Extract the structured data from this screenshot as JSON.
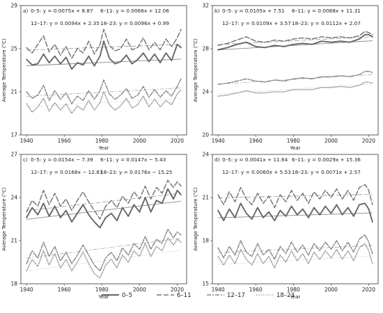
{
  "legend": {
    "entries": [
      {
        "label": "0–5",
        "series": "s0"
      },
      {
        "label": "6–11",
        "series": "s1"
      },
      {
        "label": "12–17",
        "series": "s2"
      },
      {
        "label": "18–23",
        "series": "s3"
      }
    ]
  },
  "series_styles": {
    "s0": {
      "color": "#666666",
      "dash": "",
      "width": 1.9,
      "trend_width": 0.9,
      "trend_color": "#888888"
    },
    "s1": {
      "color": "#777777",
      "dash": "7,3",
      "width": 1.5,
      "trend_width": 0.8,
      "trend_color": "#999999"
    },
    "s2": {
      "color": "#8a8a8a",
      "dash": "6,2,2,2",
      "width": 1.5,
      "trend_width": 0.8,
      "trend_color": "#a8a8a8"
    },
    "s3": {
      "color": "#9a9a9a",
      "dash": "1.2,2",
      "width": 1.5,
      "trend_width": 0.8,
      "trend_color": "#bbbbbb"
    }
  },
  "chart_data": [
    {
      "type": "line",
      "panel_label": "a)",
      "xlabel": "Year",
      "ylabel": "Average Temperature (°C)",
      "xlim": [
        1937,
        2025
      ],
      "ylim": [
        17,
        29
      ],
      "xticks": [
        "1940",
        "1960",
        "1980",
        "2000",
        "2020"
      ],
      "yticks": [
        "17",
        "21",
        "25",
        "29"
      ],
      "equations": [
        "0–5: y = 0.0075x + 8.87",
        "6–11: y = 0.0066x + 12.06",
        "12–17: y = 0.0094x + 2.35",
        "18–23: y = 0.0096x + 0.99"
      ],
      "trends": [
        {
          "series": "s0",
          "slope": 0.0075,
          "intercept": 8.87
        },
        {
          "series": "s1",
          "slope": 0.0066,
          "intercept": 12.06
        },
        {
          "series": "s2",
          "slope": 0.0094,
          "intercept": 2.35
        },
        {
          "series": "s3",
          "slope": 0.0096,
          "intercept": 0.99
        }
      ],
      "x": [
        1940,
        1943,
        1946,
        1949,
        1952,
        1955,
        1958,
        1961,
        1964,
        1967,
        1970,
        1973,
        1976,
        1979,
        1981,
        1984,
        1987,
        1990,
        1993,
        1996,
        1999,
        2002,
        2005,
        2008,
        2011,
        2014,
        2017,
        2020,
        2022
      ],
      "series": [
        {
          "id": "s0",
          "name": "0–5",
          "values": [
            24.0,
            23.5,
            23.6,
            24.5,
            23.7,
            24.3,
            23.6,
            24.2,
            23.1,
            23.7,
            23.5,
            24.3,
            23.4,
            24.3,
            25.7,
            24.1,
            23.6,
            23.8,
            24.4,
            23.6,
            24.0,
            24.6,
            23.8,
            24.5,
            23.7,
            24.6,
            23.9,
            25.4,
            25.1
          ]
        },
        {
          "id": "s1",
          "name": "6–11",
          "values": [
            25.1,
            24.6,
            25.4,
            26.2,
            24.7,
            25.4,
            24.4,
            25.2,
            24.1,
            25.0,
            24.6,
            25.7,
            24.5,
            25.4,
            26.8,
            25.3,
            24.8,
            25.0,
            25.9,
            24.9,
            25.1,
            26.0,
            24.9,
            25.6,
            24.9,
            25.9,
            25.2,
            26.0,
            26.8
          ]
        },
        {
          "id": "s2",
          "name": "12–17",
          "values": [
            21.0,
            20.4,
            20.7,
            21.6,
            20.2,
            21.1,
            20.3,
            20.9,
            19.9,
            20.6,
            20.2,
            21.1,
            20.3,
            21.1,
            22.1,
            20.8,
            20.3,
            20.7,
            21.3,
            20.4,
            20.7,
            21.5,
            20.5,
            21.2,
            20.5,
            21.1,
            20.6,
            21.5,
            22.2
          ]
        },
        {
          "id": "s3",
          "name": "18–23",
          "values": [
            19.9,
            19.1,
            19.6,
            20.4,
            19.2,
            20.0,
            19.3,
            19.9,
            19.0,
            19.7,
            19.3,
            20.2,
            19.3,
            20.0,
            21.0,
            19.8,
            19.3,
            19.7,
            20.4,
            19.5,
            19.8,
            20.6,
            19.6,
            20.3,
            19.6,
            20.2,
            19.8,
            20.8,
            21.2
          ]
        }
      ]
    },
    {
      "type": "line",
      "panel_label": "b)",
      "xlabel": "Year",
      "ylabel": "Average Temperature (°C)",
      "xlim": [
        1937,
        2025
      ],
      "ylim": [
        20,
        32
      ],
      "xticks": [
        "1940",
        "1960",
        "1980",
        "2000",
        "2020"
      ],
      "yticks": [
        "20",
        "24",
        "28",
        "32"
      ],
      "equations": [
        "0–5: y = 0.0105x + 7.51",
        "6–11: y = 0.0088x + 11.31",
        "12–17: y = 0.0109x + 3.57",
        "18–23: y = 0.0112x + 2.07"
      ],
      "trends": [
        {
          "series": "s0",
          "slope": 0.0105,
          "intercept": 7.51
        },
        {
          "series": "s1",
          "slope": 0.0088,
          "intercept": 11.31
        },
        {
          "series": "s2",
          "slope": 0.0109,
          "intercept": 3.57
        },
        {
          "series": "s3",
          "slope": 0.0112,
          "intercept": 2.07
        }
      ],
      "x": [
        1940,
        1945,
        1950,
        1955,
        1960,
        1965,
        1970,
        1975,
        1980,
        1985,
        1990,
        1995,
        2000,
        2005,
        2010,
        2015,
        2018,
        2020,
        2022
      ],
      "series": [
        {
          "id": "s0",
          "name": "0–5",
          "values": [
            27.9,
            28.1,
            28.4,
            28.6,
            28.2,
            28.1,
            28.3,
            28.2,
            28.4,
            28.5,
            28.4,
            28.7,
            28.6,
            28.7,
            28.6,
            28.9,
            29.3,
            29.3,
            29.1
          ]
        },
        {
          "id": "s1",
          "name": "6–11",
          "values": [
            28.3,
            28.5,
            28.8,
            29.1,
            28.7,
            28.6,
            28.8,
            28.7,
            28.9,
            29.0,
            28.9,
            29.1,
            29.0,
            29.1,
            29.0,
            29.2,
            29.6,
            29.5,
            29.3
          ]
        },
        {
          "id": "s2",
          "name": "12–17",
          "values": [
            24.7,
            24.8,
            25.0,
            25.2,
            25.0,
            24.9,
            25.1,
            25.0,
            25.2,
            25.3,
            25.2,
            25.4,
            25.4,
            25.5,
            25.4,
            25.6,
            25.9,
            25.9,
            25.8
          ]
        },
        {
          "id": "s3",
          "name": "18–23",
          "values": [
            23.6,
            23.7,
            23.9,
            24.1,
            23.9,
            23.9,
            24.0,
            24.0,
            24.2,
            24.2,
            24.2,
            24.4,
            24.4,
            24.5,
            24.4,
            24.6,
            24.9,
            24.9,
            24.8
          ]
        }
      ]
    },
    {
      "type": "line",
      "panel_label": "c)",
      "xlabel": "Year",
      "ylabel": "Average Temperature (°C)",
      "xlim": [
        1937,
        2025
      ],
      "ylim": [
        18,
        27
      ],
      "xticks": [
        "1940",
        "1960",
        "1980",
        "2000",
        "2020"
      ],
      "yticks": [
        "18",
        "21",
        "24",
        "27"
      ],
      "equations": [
        "0–5: y = 0.0154x − 7.39",
        "6–11: y = 0.0147x − 5.43",
        "12–17: y = 0.0168x − 12.81",
        "18–23: y = 0.0176x − 15.25"
      ],
      "trends": [
        {
          "series": "s0",
          "slope": 0.0154,
          "intercept": -7.39
        },
        {
          "series": "s1",
          "slope": 0.0147,
          "intercept": -5.43
        },
        {
          "series": "s2",
          "slope": 0.0168,
          "intercept": -12.81
        },
        {
          "series": "s3",
          "slope": 0.0176,
          "intercept": -15.25
        }
      ],
      "x": [
        1940,
        1943,
        1946,
        1949,
        1952,
        1955,
        1958,
        1961,
        1964,
        1967,
        1970,
        1973,
        1976,
        1979,
        1982,
        1985,
        1988,
        1991,
        1994,
        1997,
        2000,
        2003,
        2006,
        2009,
        2012,
        2015,
        2018,
        2020,
        2022
      ],
      "series": [
        {
          "id": "s0",
          "name": "0–5",
          "values": [
            22.6,
            23.3,
            22.8,
            23.6,
            22.7,
            23.4,
            22.6,
            23.1,
            22.3,
            22.9,
            23.5,
            22.8,
            22.3,
            21.9,
            22.6,
            22.9,
            22.4,
            23.3,
            22.7,
            23.5,
            23.0,
            24.0,
            23.0,
            23.8,
            23.6,
            24.6,
            23.9,
            24.5,
            24.2
          ]
        },
        {
          "id": "s1",
          "name": "6–11",
          "values": [
            23.0,
            23.8,
            23.4,
            24.5,
            23.5,
            24.3,
            23.4,
            23.9,
            23.1,
            23.8,
            24.4,
            23.7,
            23.1,
            22.5,
            23.4,
            23.8,
            23.3,
            24.1,
            23.6,
            24.4,
            23.9,
            24.8,
            23.9,
            24.7,
            24.3,
            25.2,
            24.7,
            25.1,
            24.8
          ]
        },
        {
          "id": "s2",
          "name": "12–17",
          "values": [
            19.4,
            20.3,
            19.8,
            20.9,
            19.9,
            20.6,
            19.6,
            20.2,
            19.4,
            20.0,
            20.7,
            20.0,
            19.3,
            18.9,
            19.8,
            20.2,
            19.6,
            20.5,
            20.0,
            20.8,
            20.4,
            21.3,
            20.4,
            21.1,
            20.8,
            21.8,
            21.2,
            21.6,
            21.4
          ]
        },
        {
          "id": "s3",
          "name": "18–23",
          "values": [
            18.9,
            19.7,
            19.2,
            20.3,
            19.3,
            20.1,
            19.1,
            19.7,
            18.9,
            19.5,
            20.2,
            19.4,
            18.7,
            18.4,
            19.3,
            19.7,
            19.1,
            20.0,
            19.5,
            20.3,
            19.9,
            20.8,
            19.9,
            20.6,
            20.3,
            21.2,
            20.7,
            21.1,
            20.9
          ]
        }
      ]
    },
    {
      "type": "line",
      "panel_label": "d)",
      "xlabel": "Year",
      "ylabel": "Average Temperature (°C)",
      "xlim": [
        1937,
        2025
      ],
      "ylim": [
        15,
        24
      ],
      "xticks": [
        "1940",
        "1960",
        "1980",
        "2000",
        "2020"
      ],
      "yticks": [
        "15",
        "18",
        "21",
        "24"
      ],
      "equations": [
        "0–5: y = 0.0041x + 11.64",
        "6–11: y = 0.0029x + 15.36",
        "12–17: y = 0.0060x + 5.53",
        "18–23: y = 0.0071x + 2.57"
      ],
      "trends": [
        {
          "series": "s0",
          "slope": 0.0041,
          "intercept": 11.64
        },
        {
          "series": "s1",
          "slope": 0.0029,
          "intercept": 15.36
        },
        {
          "series": "s2",
          "slope": 0.006,
          "intercept": 5.53
        },
        {
          "series": "s3",
          "slope": 0.0071,
          "intercept": 2.57
        }
      ],
      "x": [
        1940,
        1943,
        1946,
        1949,
        1952,
        1955,
        1958,
        1961,
        1964,
        1967,
        1970,
        1973,
        1976,
        1979,
        1982,
        1985,
        1988,
        1991,
        1994,
        1997,
        2000,
        2003,
        2006,
        2009,
        2012,
        2015,
        2018,
        2020,
        2022
      ],
      "series": [
        {
          "id": "s0",
          "name": "0–5",
          "values": [
            20.1,
            19.4,
            20.2,
            19.6,
            20.6,
            19.9,
            19.5,
            20.3,
            19.6,
            20.0,
            19.4,
            20.1,
            19.7,
            20.4,
            19.8,
            20.2,
            19.6,
            20.3,
            19.8,
            20.4,
            19.9,
            20.5,
            19.8,
            20.3,
            19.7,
            20.5,
            20.6,
            20.2,
            19.3
          ]
        },
        {
          "id": "s1",
          "name": "6–11",
          "values": [
            21.2,
            20.5,
            21.4,
            20.7,
            21.7,
            20.9,
            20.5,
            21.3,
            20.6,
            21.1,
            20.3,
            21.2,
            20.7,
            21.5,
            20.8,
            21.3,
            20.6,
            21.4,
            20.9,
            21.5,
            21.0,
            21.6,
            20.9,
            21.5,
            20.8,
            21.7,
            21.9,
            21.5,
            20.5
          ]
        },
        {
          "id": "s2",
          "name": "12–17",
          "values": [
            17.5,
            16.8,
            17.6,
            17.0,
            18.0,
            17.2,
            16.9,
            17.8,
            17.0,
            17.4,
            16.7,
            17.6,
            17.1,
            17.9,
            17.2,
            17.7,
            17.0,
            17.8,
            17.3,
            17.9,
            17.4,
            18.0,
            17.3,
            17.9,
            17.2,
            18.1,
            18.4,
            17.9,
            17.1
          ]
        },
        {
          "id": "s3",
          "name": "18–23",
          "values": [
            16.9,
            16.3,
            17.0,
            16.4,
            17.4,
            16.7,
            16.3,
            17.1,
            16.4,
            16.9,
            16.1,
            17.0,
            16.5,
            17.3,
            16.6,
            17.1,
            16.4,
            17.2,
            16.7,
            17.3,
            16.8,
            17.4,
            16.7,
            17.3,
            16.6,
            17.5,
            17.8,
            17.3,
            16.4
          ]
        }
      ]
    }
  ]
}
